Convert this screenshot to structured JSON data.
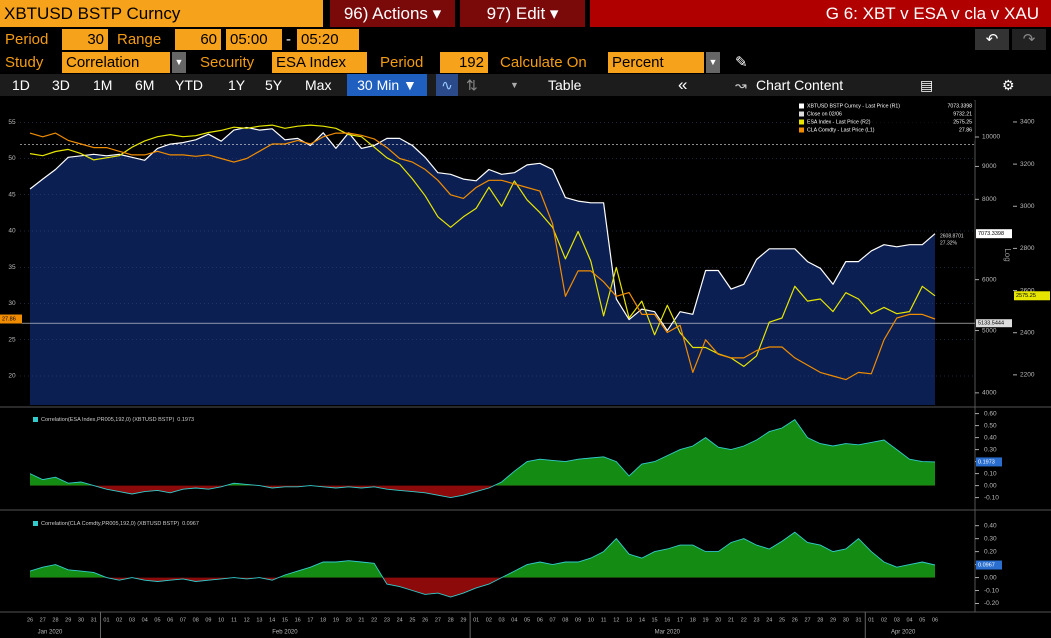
{
  "header": {
    "security": "XBTUSD BSTP Curncy",
    "actions": "96) Actions ▾",
    "edit": "97) Edit ▾",
    "title": "G 6: XBT v ESA v cla v XAU"
  },
  "settings": {
    "period_label": "Period",
    "period": "30",
    "range_label": "Range",
    "range": "60",
    "start": "05:00",
    "dash": "-",
    "end": "05:20"
  },
  "study": {
    "study_label": "Study",
    "study": "Correlation",
    "security_label": "Security",
    "security": "ESA Index",
    "period_label": "Period",
    "period": "192",
    "calc_label": "Calculate On",
    "calc": "Percent"
  },
  "toolbar": {
    "ranges": [
      "1D",
      "3D",
      "1M",
      "6M",
      "YTD",
      "1Y",
      "5Y",
      "Max"
    ],
    "interval": "30 Min ▼",
    "table": "Table",
    "collapse": "«",
    "content": "Chart Content"
  },
  "x_axis": {
    "categories": [
      "26",
      "27",
      "28",
      "29",
      "30",
      "31",
      "01",
      "02",
      "03",
      "04",
      "05",
      "06",
      "07",
      "08",
      "09",
      "10",
      "11",
      "12",
      "13",
      "14",
      "15",
      "16",
      "17",
      "18",
      "19",
      "20",
      "21",
      "22",
      "23",
      "24",
      "25",
      "26",
      "27",
      "28",
      "29",
      "01",
      "02",
      "03",
      "04",
      "05",
      "06",
      "07",
      "08",
      "09",
      "10",
      "11",
      "12",
      "13",
      "14",
      "15",
      "16",
      "17",
      "18",
      "19",
      "20",
      "21",
      "22",
      "23",
      "24",
      "25",
      "26",
      "27",
      "28",
      "29",
      "30",
      "31",
      "01",
      "02",
      "03",
      "04",
      "05",
      "06"
    ],
    "months": [
      "Jan 2020",
      "Feb 2020",
      "Mar 2020",
      "Apr 2020"
    ]
  },
  "chart_data": [
    {
      "type": "line",
      "y_axis_label": "Log",
      "grid": true,
      "y2_log": true,
      "ylim": [
        16,
        56
      ],
      "yticks": [
        20,
        25,
        30,
        35,
        40,
        45,
        50,
        55
      ],
      "y2lim": [
        3830,
        10820
      ],
      "y2ticks": [
        4000,
        5000,
        6000,
        8000,
        9000,
        10000
      ],
      "y3lim": [
        2057,
        3433
      ],
      "y3ticks": [
        2200,
        2400,
        2600,
        2800,
        3000,
        3200,
        3400
      ],
      "series": [
        {
          "name": "XBTUSD BSTP Curncy - Last Price (R1)",
          "color": "#ffffff",
          "fill": "#0c1f52",
          "axis": "y2",
          "values": [
            8300,
            8600,
            8900,
            9300,
            9350,
            9400,
            9350,
            9400,
            9300,
            9200,
            9600,
            9750,
            9800,
            9900,
            10100,
            9850,
            10250,
            10350,
            10250,
            10300,
            9900,
            9950,
            9700,
            10150,
            9600,
            10150,
            9600,
            9700,
            9950,
            9950,
            9700,
            9300,
            8800,
            8750,
            8600,
            8550,
            8900,
            8750,
            8800,
            9050,
            9100,
            8900,
            8050,
            7950,
            7900,
            7900,
            5600,
            5200,
            5400,
            5350,
            5000,
            5350,
            5300,
            6200,
            6200,
            5800,
            5900,
            6450,
            6700,
            6700,
            6700,
            6400,
            6250,
            5900,
            6400,
            6400,
            6650,
            6800,
            6750,
            6800,
            6800,
            7073.3398
          ]
        },
        {
          "name": "ESA Index - Last Price (R2)",
          "color": "#e6e600",
          "axis": "y3",
          "values": [
            3250,
            3240,
            3260,
            3270,
            3250,
            3220,
            3230,
            3240,
            3280,
            3310,
            3330,
            3340,
            3330,
            3335,
            3350,
            3360,
            3375,
            3370,
            3380,
            3385,
            3370,
            3380,
            3385,
            3380,
            3370,
            3340,
            3330,
            3280,
            3230,
            3200,
            3130,
            3050,
            2950,
            2900,
            2950,
            2990,
            3090,
            3000,
            3120,
            3030,
            2970,
            2900,
            2750,
            2880,
            2740,
            2480,
            2710,
            2470,
            2550,
            2390,
            2530,
            2400,
            2330,
            2330,
            2300,
            2280,
            2240,
            2290,
            2450,
            2470,
            2620,
            2550,
            2560,
            2500,
            2590,
            2560,
            2490,
            2520,
            2490,
            2500,
            2620,
            2575.25
          ]
        },
        {
          "name": "CLA Comdty - Last Price (L1)",
          "color": "#f08c00",
          "axis": "y",
          "values": [
            53.5,
            53,
            53.5,
            52.5,
            52,
            51.5,
            51.5,
            51,
            50.5,
            50.5,
            51,
            50.5,
            50.5,
            50.3,
            50.5,
            50,
            49.5,
            50,
            51,
            52,
            52,
            52.5,
            52,
            53,
            53.5,
            53.5,
            53.2,
            52.7,
            51.5,
            50,
            49.5,
            48.5,
            47,
            45,
            44.5,
            46,
            47,
            47,
            46.5,
            46,
            45.5,
            41,
            31,
            34.5,
            34.5,
            33,
            31,
            31.5,
            28.5,
            28.5,
            26,
            27,
            20.5,
            25,
            23,
            22.5,
            22.5,
            23.5,
            24,
            24,
            22.5,
            21.5,
            20.5,
            20,
            19.5,
            20.5,
            20.3,
            25,
            28,
            28.5,
            28.5,
            27.86
          ]
        }
      ],
      "reference_lines": [
        {
          "name": "Close on 02/06",
          "value": 9732.21
        },
        {
          "value": 5133.5444
        }
      ],
      "annotations": [
        "2608.8701",
        "27.32%"
      ]
    },
    {
      "type": "area",
      "title": "Correlation(ESA Index,PR005,192,0) (XBTUSD BSTP)",
      "color": "#33cccc",
      "positive_color": "#148c14",
      "negative_color": "#8c0a0a",
      "ylim": [
        -0.17,
        0.63
      ],
      "yticks": [
        {
          "value": -0.1,
          "label": "-0.10"
        },
        {
          "value": 0,
          "label": "0.00"
        },
        {
          "value": 0.1,
          "label": "0.10"
        },
        {
          "value": 0.2,
          "label": "0.20"
        },
        {
          "value": 0.3,
          "label": "0.30"
        },
        {
          "value": 0.4,
          "label": "0.40"
        },
        {
          "value": 0.5,
          "label": "0.50"
        },
        {
          "value": 0.6,
          "label": "0.60"
        }
      ],
      "values": [
        0.1,
        0.05,
        0.07,
        0.02,
        0.03,
        0,
        -0.03,
        -0.05,
        -0.07,
        -0.05,
        -0.04,
        -0.06,
        -0.03,
        -0.02,
        -0.03,
        -0.01,
        0.02,
        0.01,
        0,
        -0.02,
        -0.01,
        -0.01,
        0,
        -0.01,
        -0.02,
        -0.01,
        -0.02,
        -0.01,
        -0.03,
        -0.04,
        -0.05,
        -0.06,
        -0.08,
        -0.1,
        -0.08,
        -0.05,
        -0.02,
        0.03,
        0.12,
        0.2,
        0.22,
        0.21,
        0.2,
        0.22,
        0.23,
        0.24,
        0.2,
        0.08,
        0.18,
        0.2,
        0.25,
        0.3,
        0.33,
        0.4,
        0.32,
        0.3,
        0.33,
        0.38,
        0.45,
        0.48,
        0.55,
        0.4,
        0.35,
        0.33,
        0.35,
        0.34,
        0.36,
        0.38,
        0.3,
        0.22,
        0.2,
        0.1973
      ]
    },
    {
      "type": "area",
      "title": "Correlation(CLA Comdty,PR005,192,0) (XBTUSD BSTP)",
      "color": "#33cccc",
      "positive_color": "#148c14",
      "negative_color": "#8c0a0a",
      "ylim": [
        -0.25,
        0.49
      ],
      "yticks": [
        {
          "value": -0.2,
          "label": "-0.20"
        },
        {
          "value": -0.1,
          "label": "-0.10"
        },
        {
          "value": 0,
          "label": "0.00"
        },
        {
          "value": 0.1,
          "label": "0.10"
        },
        {
          "value": 0.2,
          "label": "0.20"
        },
        {
          "value": 0.3,
          "label": "0.30"
        },
        {
          "value": 0.4,
          "label": "0.40"
        }
      ],
      "values": [
        0.05,
        0.08,
        0.1,
        0.06,
        0.05,
        0.04,
        0,
        -0.02,
        0,
        -0.02,
        -0.03,
        -0.02,
        -0.01,
        -0.03,
        -0.02,
        -0.01,
        0,
        -0.01,
        0,
        -0.02,
        0.02,
        0.05,
        0.08,
        0.12,
        0.12,
        0.13,
        0.12,
        0.11,
        -0.05,
        -0.07,
        -0.1,
        -0.13,
        -0.12,
        -0.15,
        -0.12,
        -0.08,
        -0.05,
        0,
        0.05,
        0.1,
        0.12,
        0.1,
        0.12,
        0.12,
        0.15,
        0.2,
        0.3,
        0.18,
        0.15,
        0.2,
        0.22,
        0.25,
        0.25,
        0.2,
        0.2,
        0.27,
        0.3,
        0.25,
        0.22,
        0.28,
        0.35,
        0.27,
        0.25,
        0.2,
        0.22,
        0.3,
        0.2,
        0.12,
        0.08,
        0.1,
        0.12,
        0.0967
      ]
    }
  ]
}
